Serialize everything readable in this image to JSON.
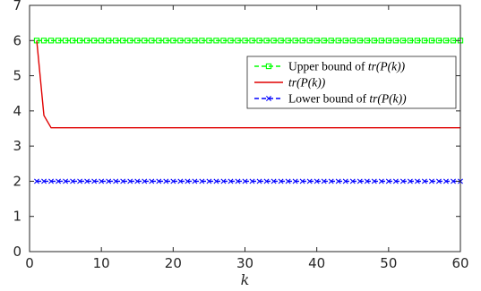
{
  "chart_data": {
    "type": "line",
    "title": "",
    "xlabel": "k",
    "ylabel": "",
    "xlim": [
      0,
      60
    ],
    "ylim": [
      0,
      7
    ],
    "x_ticks": [
      0,
      10,
      20,
      30,
      40,
      50,
      60
    ],
    "y_ticks": [
      0,
      1,
      2,
      3,
      4,
      5,
      6,
      7
    ],
    "grid": false,
    "legend_position": "upper-right",
    "x": [
      1,
      2,
      3,
      4,
      5,
      6,
      7,
      8,
      9,
      10,
      11,
      12,
      13,
      14,
      15,
      16,
      17,
      18,
      19,
      20,
      21,
      22,
      23,
      24,
      25,
      26,
      27,
      28,
      29,
      30,
      31,
      32,
      33,
      34,
      35,
      36,
      37,
      38,
      39,
      40,
      41,
      42,
      43,
      44,
      45,
      46,
      47,
      48,
      49,
      50,
      51,
      52,
      53,
      54,
      55,
      56,
      57,
      58,
      59,
      60
    ],
    "series": [
      {
        "name": "Upper bound of tr(P(k))",
        "color": "#00ff00",
        "line_style": "dashed",
        "marker": "square",
        "values": [
          6,
          6,
          6,
          6,
          6,
          6,
          6,
          6,
          6,
          6,
          6,
          6,
          6,
          6,
          6,
          6,
          6,
          6,
          6,
          6,
          6,
          6,
          6,
          6,
          6,
          6,
          6,
          6,
          6,
          6,
          6,
          6,
          6,
          6,
          6,
          6,
          6,
          6,
          6,
          6,
          6,
          6,
          6,
          6,
          6,
          6,
          6,
          6,
          6,
          6,
          6,
          6,
          6,
          6,
          6,
          6,
          6,
          6,
          6,
          6
        ]
      },
      {
        "name": "tr(P(k))",
        "color": "#e00000",
        "line_style": "solid",
        "marker": "none",
        "values": [
          6,
          3.87,
          3.52,
          3.52,
          3.52,
          3.52,
          3.52,
          3.52,
          3.52,
          3.52,
          3.52,
          3.52,
          3.52,
          3.52,
          3.52,
          3.52,
          3.52,
          3.52,
          3.52,
          3.52,
          3.52,
          3.52,
          3.52,
          3.52,
          3.52,
          3.52,
          3.52,
          3.52,
          3.52,
          3.52,
          3.52,
          3.52,
          3.52,
          3.52,
          3.52,
          3.52,
          3.52,
          3.52,
          3.52,
          3.52,
          3.52,
          3.52,
          3.52,
          3.52,
          3.52,
          3.52,
          3.52,
          3.52,
          3.52,
          3.52,
          3.52,
          3.52,
          3.52,
          3.52,
          3.52,
          3.52,
          3.52,
          3.52,
          3.52,
          3.52
        ]
      },
      {
        "name": "Lower bound of tr(P(k))",
        "color": "#0000ff",
        "line_style": "dashed",
        "marker": "x",
        "values": [
          2,
          2,
          2,
          2,
          2,
          2,
          2,
          2,
          2,
          2,
          2,
          2,
          2,
          2,
          2,
          2,
          2,
          2,
          2,
          2,
          2,
          2,
          2,
          2,
          2,
          2,
          2,
          2,
          2,
          2,
          2,
          2,
          2,
          2,
          2,
          2,
          2,
          2,
          2,
          2,
          2,
          2,
          2,
          2,
          2,
          2,
          2,
          2,
          2,
          2,
          2,
          2,
          2,
          2,
          2,
          2,
          2,
          2,
          2,
          2
        ]
      }
    ]
  },
  "legend": {
    "entries": [
      {
        "prefix": "Upper bound of ",
        "formula": "tr(P(k))"
      },
      {
        "prefix": "",
        "formula": "tr(P(k))"
      },
      {
        "prefix": "Lower bound of ",
        "formula": "tr(P(k))"
      }
    ]
  }
}
